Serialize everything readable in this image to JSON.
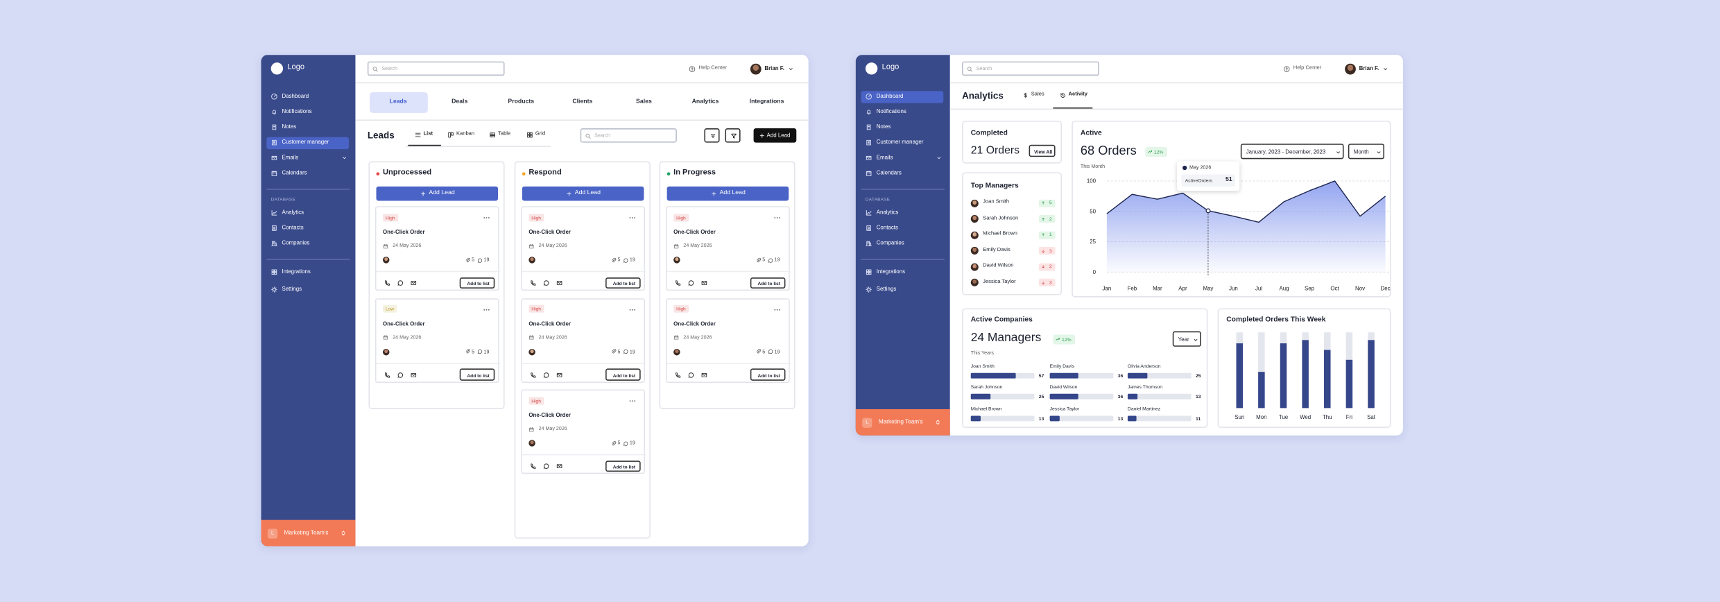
{
  "left_app": {
    "sidebar": {
      "logo": "Logo",
      "nav": [
        {
          "label": "Dashboard"
        },
        {
          "label": "Notifications"
        },
        {
          "label": "Notes"
        },
        {
          "label": "Customer manager",
          "active": true
        },
        {
          "label": "Emails",
          "submenu": true
        },
        {
          "label": "Calendars"
        }
      ],
      "section": "DATABASE",
      "database": [
        {
          "label": "Analytics"
        },
        {
          "label": "Contacts"
        },
        {
          "label": "Companies"
        }
      ],
      "extra": [
        {
          "label": "Integrations"
        },
        {
          "label": "Settings"
        }
      ],
      "team": "Marketing Team's",
      "team_initial": "L"
    },
    "topbar": {
      "search": "Search",
      "help": "Help Center",
      "user": "Brian F."
    },
    "tabs": [
      {
        "label": "Leads",
        "active": true
      },
      {
        "label": "Deals"
      },
      {
        "label": "Products"
      },
      {
        "label": "Clients"
      },
      {
        "label": "Sales"
      },
      {
        "label": "Analytics"
      },
      {
        "label": "Integrations"
      }
    ],
    "toolbar": {
      "title": "Leads",
      "views": [
        {
          "label": "List",
          "active": true
        },
        {
          "label": "Kanban"
        },
        {
          "label": "Table"
        },
        {
          "label": "Grid"
        }
      ],
      "search": "Search",
      "add_button": "Add Lead"
    },
    "columns": [
      {
        "name": "Unprocessed",
        "dot": "#e5484d",
        "add_button": "Add Lead",
        "cards": [
          {
            "priority": "High",
            "priority_color": "#d64545",
            "title": "One-Click Order",
            "date": "24 May 2026",
            "attachments": 5,
            "comments": 19,
            "action": "Add to list"
          },
          {
            "priority": "Low",
            "priority_color": "#b89a1e",
            "title": "One-Click Order",
            "date": "24 May 2026",
            "attachments": 5,
            "comments": 19,
            "action": "Add to list"
          }
        ]
      },
      {
        "name": "Respond",
        "dot": "#f5a524",
        "add_button": "Add Lead",
        "cards": [
          {
            "priority": "High",
            "priority_color": "#d64545",
            "title": "One-Click Order",
            "date": "24 May 2026",
            "attachments": 5,
            "comments": 19,
            "action": "Add to list"
          },
          {
            "priority": "High",
            "priority_color": "#d64545",
            "title": "One-Click Order",
            "date": "24 May 2026",
            "attachments": 5,
            "comments": 19,
            "action": "Add to list"
          },
          {
            "priority": "High",
            "priority_color": "#d64545",
            "title": "One-Click Order",
            "date": "24 May 2026",
            "attachments": 5,
            "comments": 19,
            "action": "Add to list"
          }
        ]
      },
      {
        "name": "In Progress",
        "dot": "#21a366",
        "add_button": "Add Lead",
        "cards": [
          {
            "priority": "High",
            "priority_color": "#d64545",
            "title": "One-Click Order",
            "date": "24 May 2026",
            "attachments": 5,
            "comments": 19,
            "action": "Add to list"
          },
          {
            "priority": "High",
            "priority_color": "#d64545",
            "title": "One-Click Order",
            "date": "24 May 2026",
            "attachments": 5,
            "comments": 19,
            "action": "Add to list"
          }
        ]
      }
    ]
  },
  "right_app": {
    "sidebar": {
      "logo": "Logo",
      "nav": [
        {
          "label": "Dashboard",
          "active": true
        },
        {
          "label": "Notifications"
        },
        {
          "label": "Notes"
        },
        {
          "label": "Customer manager"
        },
        {
          "label": "Emails",
          "submenu": true
        },
        {
          "label": "Calendars"
        }
      ],
      "section": "DATABASE",
      "database": [
        {
          "label": "Analytics"
        },
        {
          "label": "Contacts"
        },
        {
          "label": "Companies"
        }
      ],
      "extra": [
        {
          "label": "Integrations"
        },
        {
          "label": "Settings"
        }
      ],
      "team": "Marketing Team's",
      "team_initial": "L"
    },
    "topbar": {
      "search": "Search",
      "help": "Help Center",
      "user": "Brian F."
    },
    "header": {
      "title": "Analytics",
      "tabs": [
        {
          "label": "Sales"
        },
        {
          "label": "Activity",
          "active": true
        }
      ]
    },
    "completed": {
      "title": "Completed",
      "value": "21 Orders",
      "button": "View All"
    },
    "top_managers": {
      "title": "Top Managers",
      "rows": [
        {
          "name": "Joan Smith",
          "change": 5,
          "trend": "up"
        },
        {
          "name": "Sarah Johnson",
          "change": 2,
          "trend": "up"
        },
        {
          "name": "Michael Brown",
          "change": 1,
          "trend": "up"
        },
        {
          "name": "Emily Davis",
          "change": 3,
          "trend": "down"
        },
        {
          "name": "David Wilson",
          "change": 2,
          "trend": "down"
        },
        {
          "name": "Jessica Taylor",
          "change": 3,
          "trend": "down"
        }
      ]
    },
    "active": {
      "title": "Active",
      "value": "68 Orders",
      "badge": "12%",
      "period": "This Month",
      "range": "January, 2023 - December, 2023",
      "granularity": "Month",
      "tooltip": {
        "date": "May 2026",
        "label": "ActiveOrders",
        "value": 51
      },
      "chart": {
        "type": "area",
        "categories": [
          "Jan",
          "Feb",
          "Mar",
          "Apr",
          "May",
          "Jun",
          "Jul",
          "Aug",
          "Sep",
          "Oct",
          "Nov",
          "Dec"
        ],
        "values": [
          48,
          78,
          70,
          80,
          51,
          46,
          41,
          66,
          84,
          100,
          46,
          75
        ],
        "ylim": [
          0,
          100
        ],
        "yticks": [
          0,
          25,
          50,
          100
        ],
        "grid": true,
        "color": "#6f86ea"
      }
    },
    "active_companies": {
      "title": "Active Companies",
      "value": "24 Managers",
      "badge": "12%",
      "period": "This Years",
      "filter": "Year",
      "chart": {
        "type": "progress",
        "categories": [
          "Joan Smith",
          "Emily Davis",
          "Olivia Anderson",
          "Sarah Johnson",
          "David Wilson",
          "James Thomson",
          "Michael Brown",
          "Jessica Taylor",
          "Daniel Martinez"
        ],
        "values": [
          57,
          36,
          25,
          25,
          36,
          13,
          13,
          13,
          11
        ],
        "xlim": [
          0,
          80
        ],
        "color": "#35468a"
      }
    },
    "weekly": {
      "title": "Completed Orders This Week",
      "chart": {
        "type": "bar",
        "categories": [
          "Sun",
          "Mon",
          "Tue",
          "Wed",
          "Thu",
          "Fri",
          "Sat"
        ],
        "values": [
          86,
          48,
          86,
          90,
          77,
          64,
          90
        ],
        "ylim": [
          0,
          100
        ],
        "color": "#35468a"
      }
    }
  }
}
